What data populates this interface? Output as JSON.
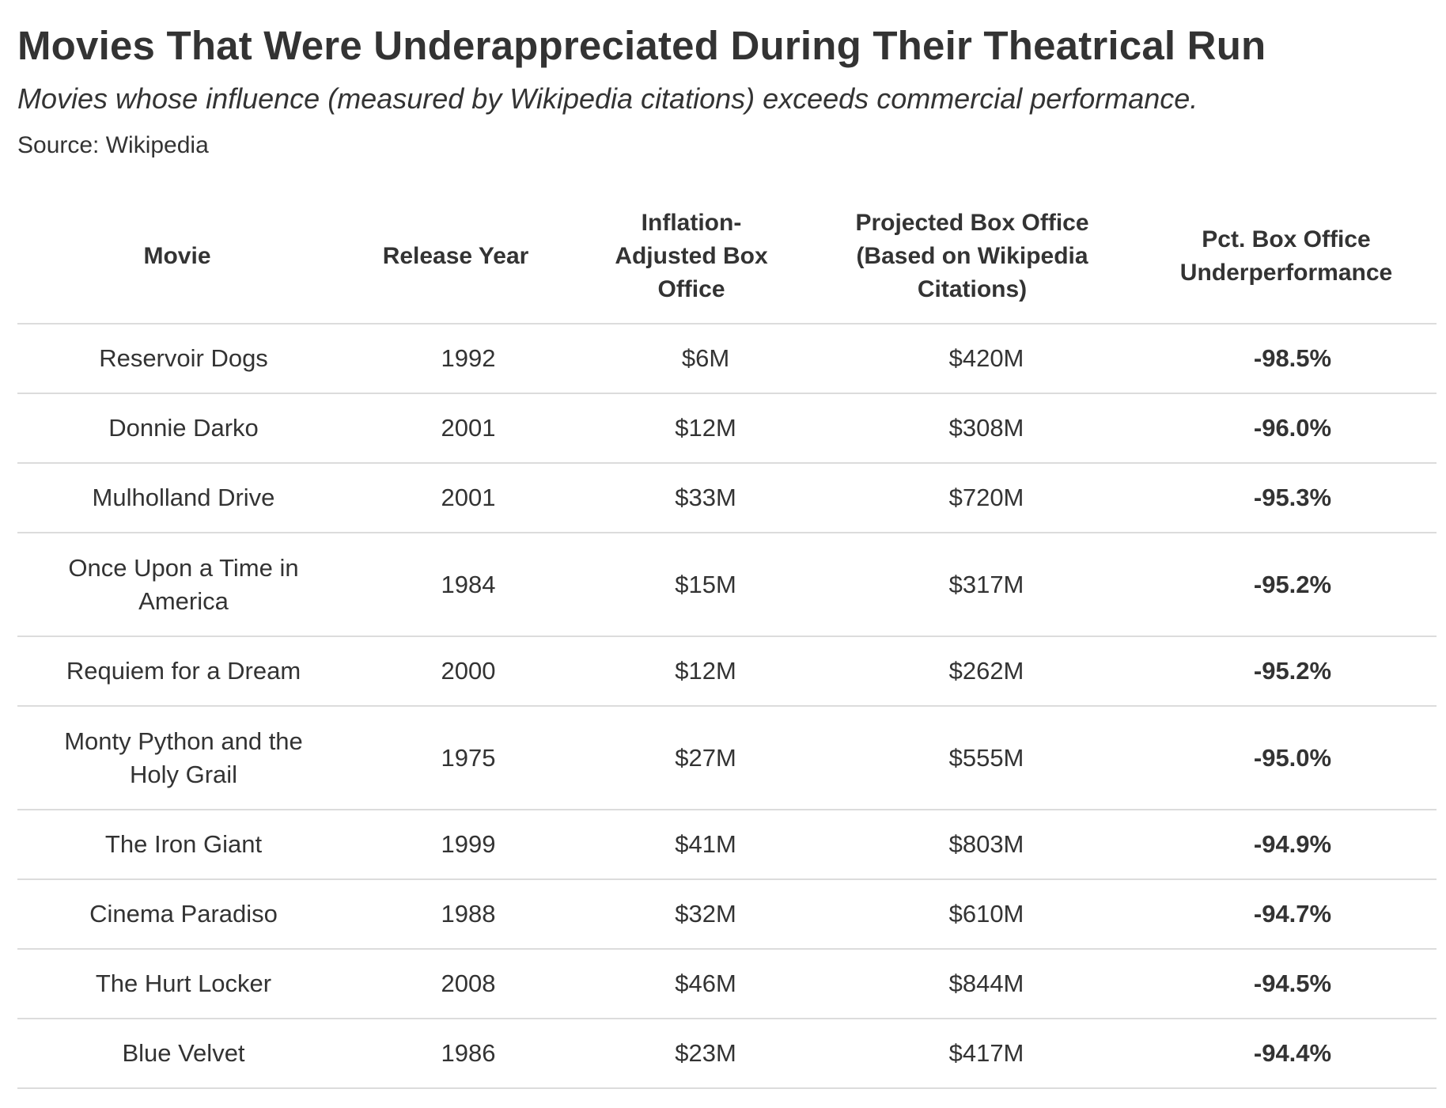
{
  "title": "Movies That Were Underappreciated During Their Theatrical Run",
  "subtitle": "Movies whose influence (measured by Wikipedia citations) exceeds commercial performance.",
  "source": "Source: Wikipedia",
  "chart_data": {
    "type": "table",
    "columns": [
      "Movie",
      "Release Year",
      "Inflation-Adjusted Box Office",
      "Projected Box Office (Based on Wikipedia Citations)",
      "Pct. Box Office Underperformance"
    ],
    "header_lines": [
      [
        "Movie"
      ],
      [
        "Release Year"
      ],
      [
        "Inflation-",
        "Adjusted Box",
        "Office"
      ],
      [
        "Projected Box Office",
        "(Based on Wikipedia",
        "Citations)"
      ],
      [
        "Pct. Box Office",
        "Underperformance"
      ]
    ],
    "rows": [
      {
        "movie": "Reservoir Dogs",
        "movie_lines": [
          "Reservoir Dogs"
        ],
        "year": "1992",
        "box_office": "$6M",
        "projected": "$420M",
        "pct": "-98.5%"
      },
      {
        "movie": "Donnie Darko",
        "movie_lines": [
          "Donnie Darko"
        ],
        "year": "2001",
        "box_office": "$12M",
        "projected": "$308M",
        "pct": "-96.0%"
      },
      {
        "movie": "Mulholland Drive",
        "movie_lines": [
          "Mulholland Drive"
        ],
        "year": "2001",
        "box_office": "$33M",
        "projected": "$720M",
        "pct": "-95.3%"
      },
      {
        "movie": "Once Upon a Time in America",
        "movie_lines": [
          "Once Upon a Time in",
          "America"
        ],
        "year": "1984",
        "box_office": "$15M",
        "projected": "$317M",
        "pct": "-95.2%"
      },
      {
        "movie": "Requiem for a Dream",
        "movie_lines": [
          "Requiem for a Dream"
        ],
        "year": "2000",
        "box_office": "$12M",
        "projected": "$262M",
        "pct": "-95.2%"
      },
      {
        "movie": "Monty Python and the Holy Grail",
        "movie_lines": [
          "Monty Python and the",
          "Holy Grail"
        ],
        "year": "1975",
        "box_office": "$27M",
        "projected": "$555M",
        "pct": "-95.0%"
      },
      {
        "movie": "The Iron Giant",
        "movie_lines": [
          "The Iron Giant"
        ],
        "year": "1999",
        "box_office": "$41M",
        "projected": "$803M",
        "pct": "-94.9%"
      },
      {
        "movie": "Cinema Paradiso",
        "movie_lines": [
          "Cinema Paradiso"
        ],
        "year": "1988",
        "box_office": "$32M",
        "projected": "$610M",
        "pct": "-94.7%"
      },
      {
        "movie": "The Hurt Locker",
        "movie_lines": [
          "The Hurt Locker"
        ],
        "year": "2008",
        "box_office": "$46M",
        "projected": "$844M",
        "pct": "-94.5%"
      },
      {
        "movie": "Blue Velvet",
        "movie_lines": [
          "Blue Velvet"
        ],
        "year": "1986",
        "box_office": "$23M",
        "projected": "$417M",
        "pct": "-94.4%"
      }
    ]
  }
}
